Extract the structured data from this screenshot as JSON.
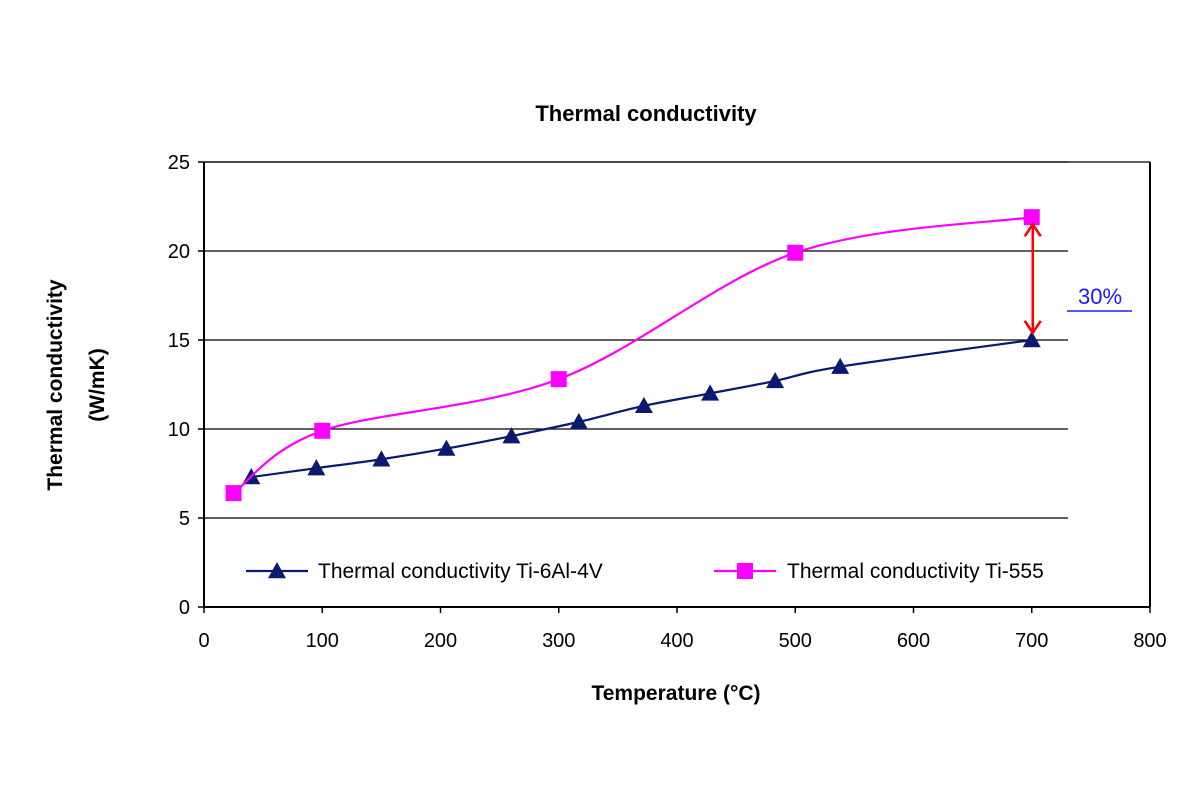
{
  "chart_data": {
    "type": "line",
    "title": "Thermal conductivity",
    "xlabel": "Temperature (°C)",
    "ylabel_line1": "Thermal conductivity",
    "ylabel_line2": "(W/mK)",
    "xlim": [
      0,
      800
    ],
    "ylim": [
      0,
      25
    ],
    "xticks": [
      0,
      100,
      200,
      300,
      400,
      500,
      600,
      700,
      800
    ],
    "yticks": [
      0,
      5,
      10,
      15,
      20,
      25
    ],
    "grid": "horizontal",
    "legend_position": "bottom-inside",
    "series": [
      {
        "name": "Thermal conductivity Ti-6Al-4V",
        "color": "#0a1a6e",
        "marker": "triangle",
        "x": [
          40,
          95,
          150,
          205,
          260,
          317,
          372,
          428,
          483,
          538,
          700
        ],
        "y": [
          7.3,
          7.8,
          8.3,
          8.9,
          9.6,
          10.4,
          11.3,
          12.0,
          12.7,
          13.5,
          15.0
        ]
      },
      {
        "name": "Thermal conductivity Ti-555",
        "color": "#ff00ff",
        "marker": "square",
        "x": [
          25,
          100,
          300,
          500,
          700
        ],
        "y": [
          6.4,
          9.9,
          12.8,
          19.9,
          21.9
        ]
      }
    ],
    "annotations": [
      {
        "text": "30%",
        "color": "#1a1aff",
        "arrow_color": "#ff0000",
        "x": 700,
        "y_from": 21.5,
        "y_to": 15.4
      }
    ]
  }
}
